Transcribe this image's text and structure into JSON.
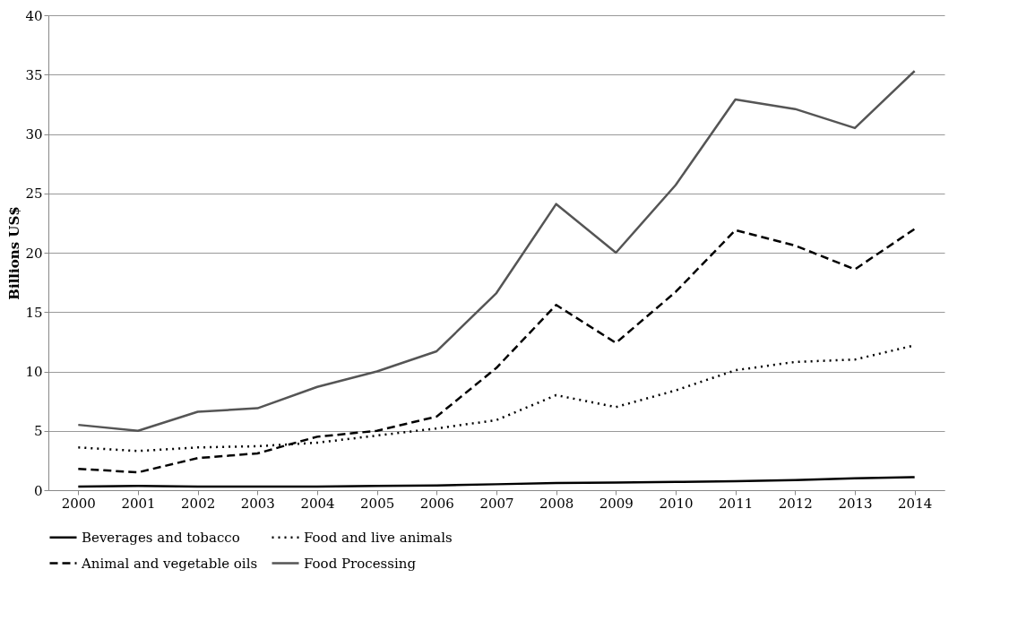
{
  "chart_data": {
    "type": "line",
    "ylabel": "Billions US$",
    "categories": [
      "2000",
      "2001",
      "2002",
      "2003",
      "2004",
      "2005",
      "2006",
      "2007",
      "2008",
      "2009",
      "2010",
      "2011",
      "2012",
      "2013",
      "2014"
    ],
    "ylim": [
      0,
      40
    ],
    "yticks": [
      0,
      5,
      10,
      15,
      20,
      25,
      30,
      35,
      40
    ],
    "grid": "y",
    "legend": "bottom",
    "marker": "none",
    "series": [
      {
        "name": "Beverages and tobacco",
        "color": "#000000",
        "line_style": "solid",
        "values": [
          0.3,
          0.35,
          0.3,
          0.3,
          0.3,
          0.35,
          0.4,
          0.5,
          0.6,
          0.65,
          0.7,
          0.75,
          0.85,
          1.0,
          1.1
        ]
      },
      {
        "name": "Food and live animals",
        "color": "#000000",
        "line_style": "dotted",
        "values": [
          3.6,
          3.3,
          3.6,
          3.7,
          4.0,
          4.6,
          5.2,
          5.9,
          8.0,
          7.0,
          8.4,
          10.1,
          10.8,
          11.0,
          12.2
        ]
      },
      {
        "name": "Animal and vegetable oils",
        "color": "#000000",
        "line_style": "dashed",
        "values": [
          1.8,
          1.5,
          2.7,
          3.1,
          4.5,
          5.0,
          6.2,
          10.3,
          15.6,
          12.4,
          16.7,
          21.9,
          20.6,
          18.6,
          22.0
        ]
      },
      {
        "name": "Food Processing",
        "color": "#555555",
        "line_style": "solid",
        "values": [
          5.5,
          5.0,
          6.6,
          6.9,
          8.7,
          10.0,
          11.7,
          16.6,
          24.1,
          20.0,
          25.7,
          32.9,
          32.1,
          30.5,
          35.3
        ]
      }
    ]
  }
}
